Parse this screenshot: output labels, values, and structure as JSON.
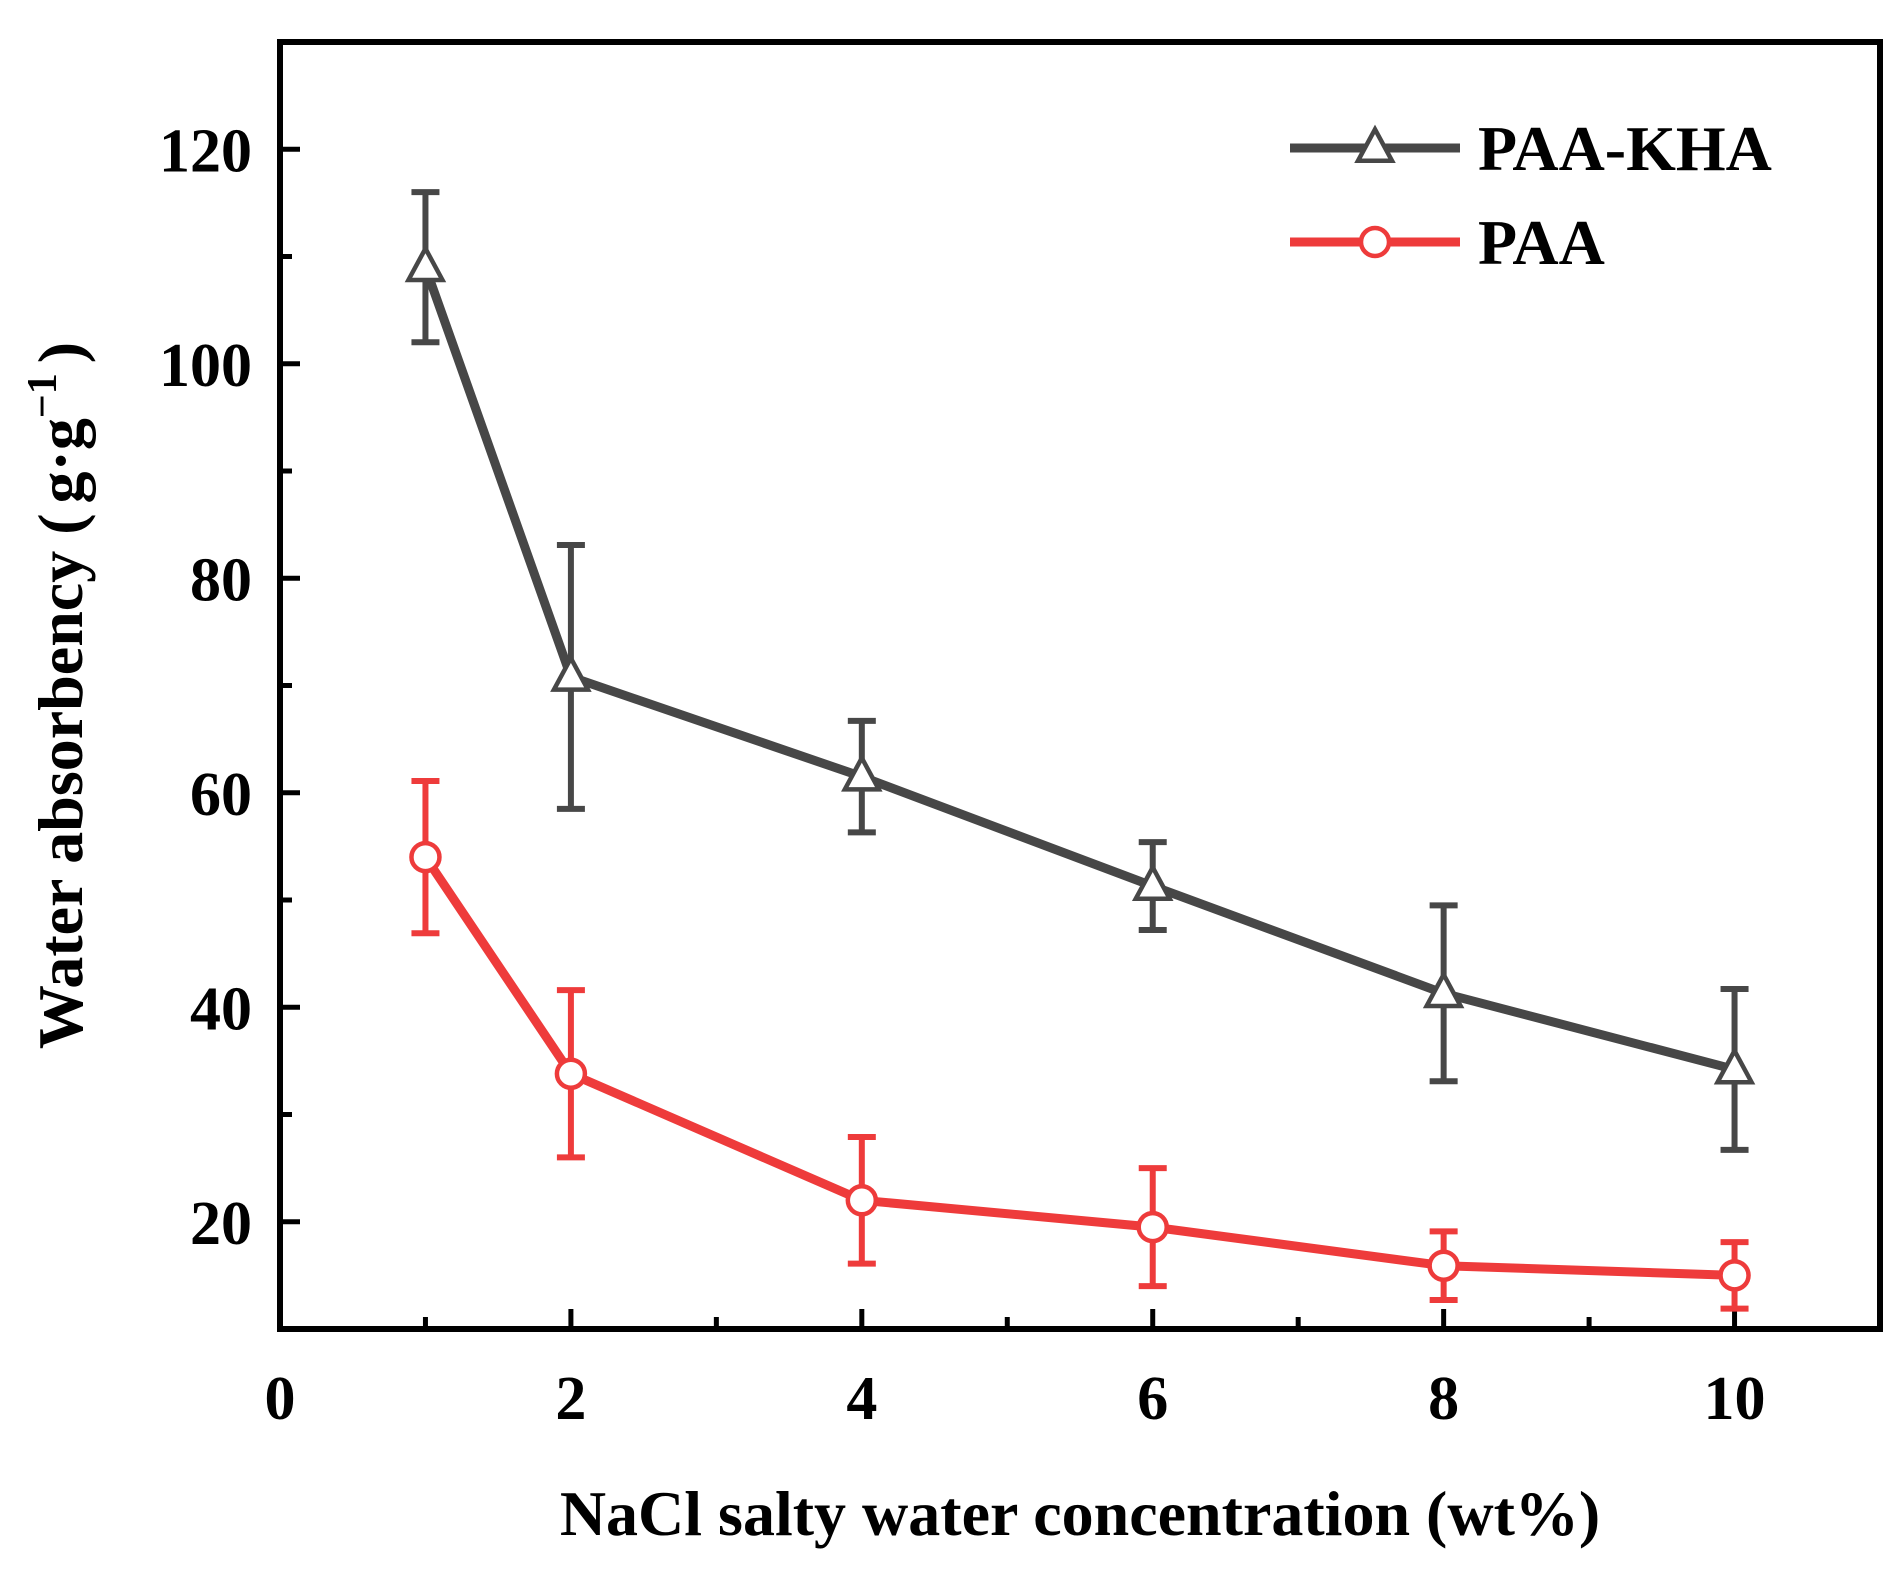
{
  "chart_data": {
    "type": "line",
    "title": "",
    "xlabel": "NaCl salty water concentration (wt%)",
    "ylabel": {
      "main": "Water absorbency (",
      "unit_g1": "g",
      "dot": "·",
      "unit_g2": "g",
      "exponent": "−1",
      "close": ")"
    },
    "xlim": [
      0,
      11
    ],
    "ylim": [
      10,
      130
    ],
    "x_ticks": [
      0,
      2,
      4,
      6,
      8,
      10
    ],
    "x_tick_labels": [
      "0",
      "2",
      "4",
      "6",
      "8",
      "10"
    ],
    "x_minor_ticks": [
      1,
      3,
      5,
      7,
      9
    ],
    "y_ticks": [
      20,
      40,
      60,
      80,
      100,
      120
    ],
    "y_tick_labels": [
      "20",
      "40",
      "60",
      "80",
      "100",
      "120"
    ],
    "y_minor_ticks": [
      30,
      50,
      70,
      90,
      110
    ],
    "grid": false,
    "legend_position": "top-right",
    "series": [
      {
        "name": "PAA-KHA",
        "marker": "triangle",
        "color": "#474747",
        "x": [
          1,
          2,
          4,
          6,
          8,
          10
        ],
        "values": [
          109,
          70.8,
          61.5,
          51.3,
          41.3,
          34.2
        ],
        "errors": [
          7,
          12.3,
          5.2,
          4.1,
          8.2,
          7.5
        ]
      },
      {
        "name": "PAA",
        "marker": "circle",
        "color": "#ee3b3b",
        "x": [
          1,
          2,
          4,
          6,
          8,
          10
        ],
        "values": [
          54,
          33.8,
          22,
          19.5,
          15.9,
          15
        ],
        "errors": [
          7.1,
          7.8,
          5.9,
          5.5,
          3.2,
          3.1
        ]
      }
    ]
  }
}
